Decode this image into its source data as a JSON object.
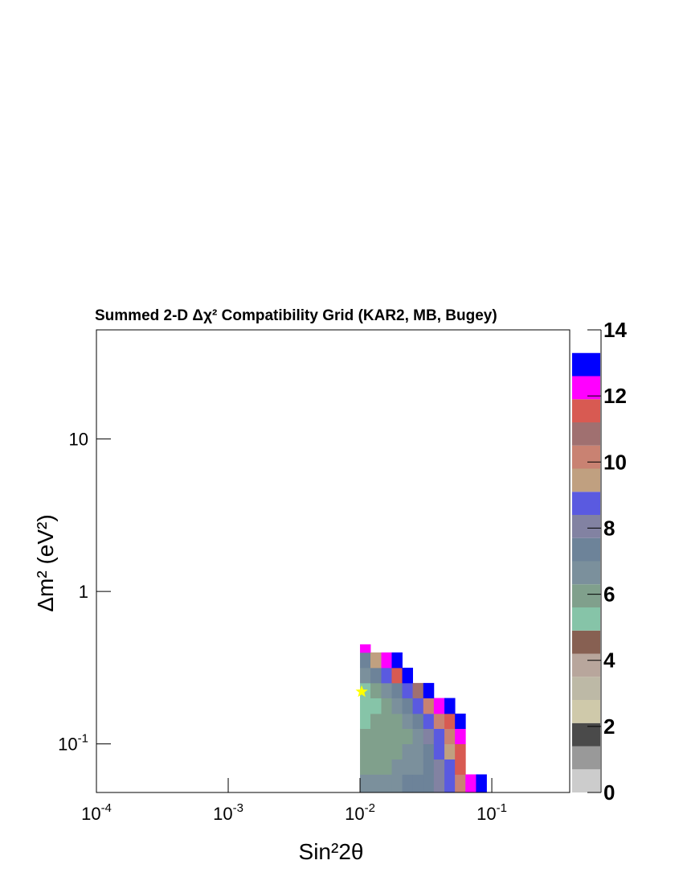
{
  "chart_data": {
    "type": "heatmap",
    "title": "Summed 2-D Δχ² Compatibility Grid (KAR2, MB, Bugey)",
    "xlabel": "Sin²2θ",
    "ylabel": "Δm² (eV²)",
    "xlog": true,
    "ylog": true,
    "xlim": [
      0.0001,
      0.39
    ],
    "ylim": [
      0.048,
      52
    ],
    "xticks": [
      {
        "value": 0.0001,
        "label": "10",
        "exponent": "-4"
      },
      {
        "value": 0.001,
        "label": "10",
        "exponent": "-3"
      },
      {
        "value": 0.01,
        "label": "10",
        "exponent": "-2"
      },
      {
        "value": 0.1,
        "label": "10",
        "exponent": "-1"
      }
    ],
    "yticks": [
      {
        "value": 0.1,
        "label": "10",
        "exponent": "-1"
      },
      1,
      10
    ],
    "xbins": [
      0.01,
      0.012,
      0.0145,
      0.0174,
      0.0209,
      0.0251,
      0.0302,
      0.0363,
      0.0437,
      0.0525,
      0.0631,
      0.0759,
      0.0912
    ],
    "ybins": [
      0.048,
      0.0631,
      0.0794,
      0.1,
      0.126,
      0.158,
      0.2,
      0.251,
      0.316,
      0.398,
      0.45
    ],
    "z": [
      [
        6.65,
        6.65,
        6.65,
        6.65,
        7.35,
        7.35,
        7.35,
        8.05,
        8.75,
        10.15,
        12.25,
        12.95
      ],
      [
        5.95,
        5.95,
        5.95,
        6.65,
        6.65,
        6.65,
        7.35,
        8.05,
        8.75,
        11.55,
        null,
        null
      ],
      [
        5.95,
        5.95,
        5.95,
        5.95,
        6.65,
        6.65,
        7.35,
        8.75,
        9.45,
        11.55,
        null,
        null
      ],
      [
        5.95,
        5.95,
        5.95,
        5.95,
        5.95,
        6.65,
        8.05,
        8.75,
        10.15,
        12.25,
        null,
        null
      ],
      [
        5.25,
        5.95,
        5.95,
        5.95,
        6.65,
        7.35,
        8.75,
        10.15,
        11.55,
        12.95,
        null,
        null
      ],
      [
        5.25,
        5.25,
        5.95,
        6.65,
        7.35,
        8.75,
        10.15,
        12.25,
        12.95,
        null,
        null,
        null
      ],
      [
        5.25,
        5.95,
        6.65,
        7.35,
        8.75,
        10.85,
        12.95,
        null,
        null,
        null,
        null,
        null
      ],
      [
        6.65,
        7.35,
        8.75,
        11.55,
        12.95,
        null,
        null,
        null,
        null,
        null,
        null,
        null
      ],
      [
        7.35,
        9.45,
        12.25,
        12.95,
        null,
        null,
        null,
        null,
        null,
        null,
        null,
        null
      ],
      [
        12.25,
        null,
        null,
        null,
        null,
        null,
        null,
        null,
        null,
        null,
        null,
        null
      ]
    ],
    "zlim": [
      0,
      14
    ],
    "zticks": [
      0,
      2,
      4,
      6,
      8,
      10,
      12,
      14
    ],
    "zlevels": [
      0,
      0.7,
      1.4,
      2.1,
      2.8,
      3.5,
      4.2,
      4.9,
      5.6,
      6.3,
      7,
      7.7,
      8.4,
      9.1,
      9.8,
      10.5,
      11.2,
      11.9,
      12.6,
      13.3
    ],
    "colors": [
      "#cccccc",
      "#999999",
      "#4a4a4a",
      "#cfc9aa",
      "#bdb9a6",
      "#b8a69c",
      "#876052",
      "#86c4a8",
      "#80a08c",
      "#7b909c",
      "#6d8399",
      "#8282a2",
      "#5a5ae0",
      "#c0a080",
      "#c98272",
      "#a07070",
      "#d85a52",
      "#ff00ff",
      "#0000ff"
    ],
    "best_fit": {
      "x": 0.0103,
      "y": 0.22,
      "color": "#ffff00"
    }
  }
}
